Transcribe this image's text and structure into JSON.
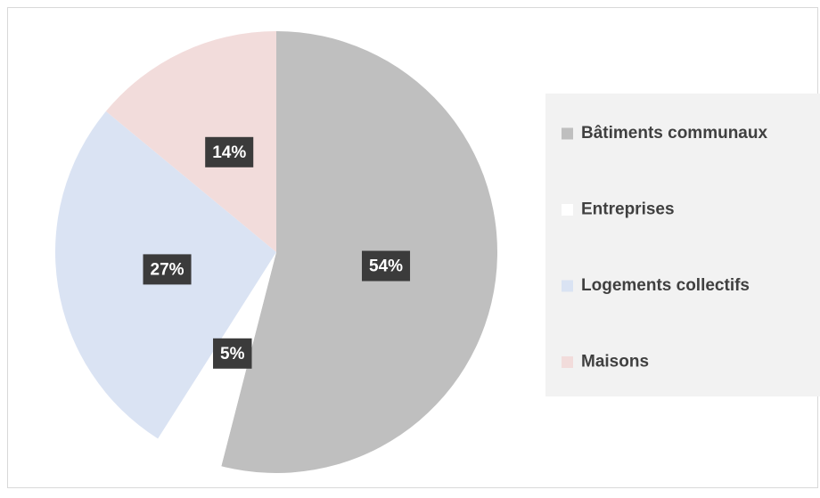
{
  "chart_data": {
    "type": "pie",
    "categories": [
      "Bâtiments communaux",
      "Entreprises",
      "Logements collectifs",
      "Maisons"
    ],
    "values": [
      54,
      5,
      27,
      14
    ],
    "value_labels": [
      "54%",
      "5%",
      "27%",
      "14%"
    ],
    "colors": [
      "#bfbfbf",
      "#ffffff",
      "#dae3f3",
      "#f2dcdb"
    ],
    "legend": "right"
  }
}
